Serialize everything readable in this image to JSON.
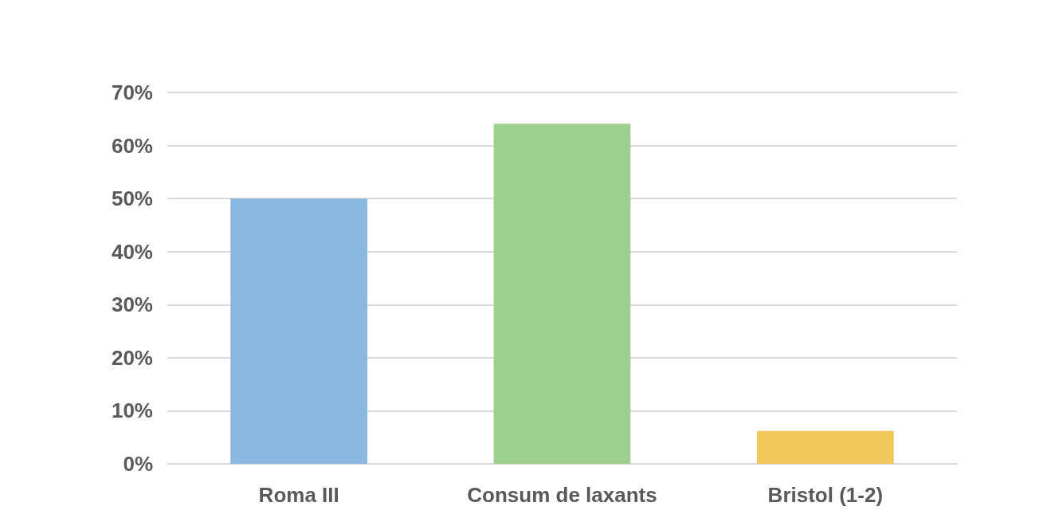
{
  "chart_data": {
    "type": "bar",
    "categories": [
      "Roma III",
      "Consum de laxants",
      "Bristol (1-2)"
    ],
    "values": [
      50,
      64.1,
      6.2
    ],
    "colors": [
      "#8ab8e0",
      "#9dd08f",
      "#f2c75c"
    ],
    "ylim": [
      0,
      70
    ],
    "yticks": [
      {
        "value": 0,
        "label": "0%"
      },
      {
        "value": 10,
        "label": "10%"
      },
      {
        "value": 20,
        "label": "20%"
      },
      {
        "value": 30,
        "label": "30%"
      },
      {
        "value": 40,
        "label": "40%"
      },
      {
        "value": 50,
        "label": "50%"
      },
      {
        "value": 60,
        "label": "60%"
      },
      {
        "value": 70,
        "label": "70%"
      }
    ],
    "grid": "y"
  }
}
